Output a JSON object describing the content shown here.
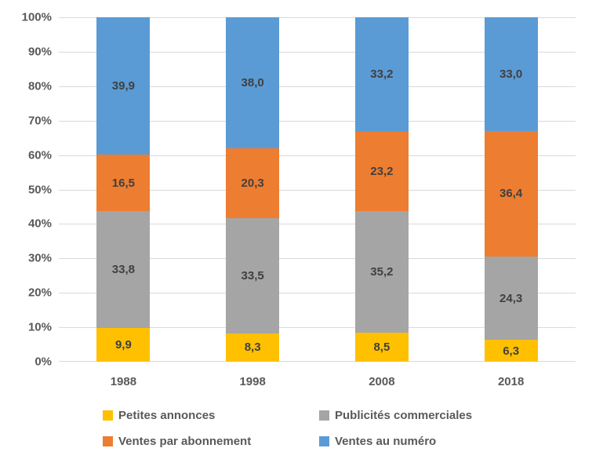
{
  "chart_data": {
    "type": "bar",
    "variant": "stacked-100-percent",
    "title": "",
    "categories": [
      "1988",
      "1998",
      "2008",
      "2018"
    ],
    "series": [
      {
        "name": "Petites annonces",
        "color": "#FFC000",
        "values": [
          9.9,
          8.3,
          8.5,
          6.3
        ],
        "labels": [
          "9,9",
          "8,3",
          "8,5",
          "6,3"
        ]
      },
      {
        "name": "Publicités commerciales",
        "color": "#A5A5A5",
        "values": [
          33.8,
          33.5,
          35.2,
          24.3
        ],
        "labels": [
          "33,8",
          "33,5",
          "35,2",
          "24,3"
        ]
      },
      {
        "name": "Ventes par abonnement",
        "color": "#ED7D31",
        "values": [
          16.5,
          20.3,
          23.2,
          36.4
        ],
        "labels": [
          "16,5",
          "20,3",
          "23,2",
          "36,4"
        ]
      },
      {
        "name": "Ventes au numéro",
        "color": "#5B9BD5",
        "values": [
          39.9,
          38.0,
          33.2,
          33.0
        ],
        "labels": [
          "39,9",
          "38,0",
          "33,2",
          "33,0"
        ]
      }
    ],
    "y_axis": {
      "min": 0,
      "max": 100,
      "step": 10,
      "tick_labels": [
        "0%",
        "10%",
        "20%",
        "30%",
        "40%",
        "50%",
        "60%",
        "70%",
        "80%",
        "90%",
        "100%"
      ]
    },
    "grid": true,
    "legend_position": "bottom",
    "colors": {
      "grid": "#D9D9D9",
      "axis_text": "#595959",
      "data_label": "#404040",
      "background": "#FFFFFF"
    }
  }
}
